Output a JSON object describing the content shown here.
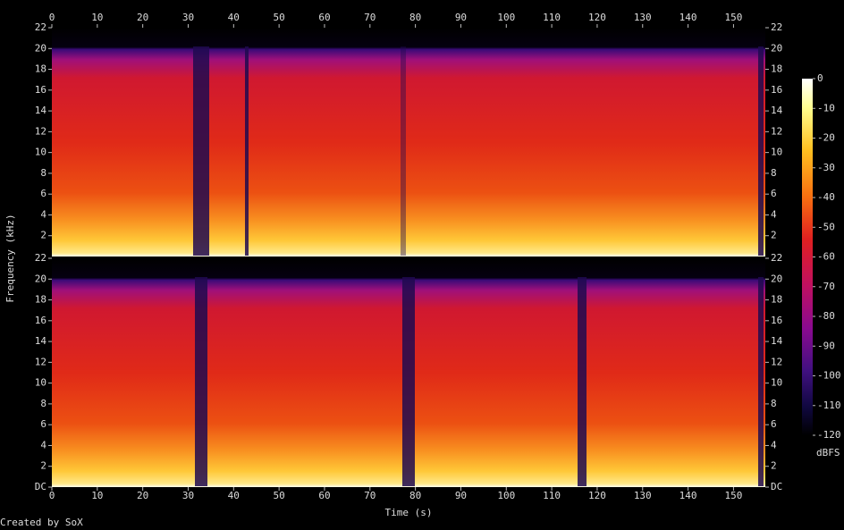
{
  "chart_data": [
    {
      "type": "heatmap",
      "ylabel": "Frequency (kHz)",
      "xlim": [
        0,
        157
      ],
      "xticks": [
        0,
        10,
        20,
        30,
        40,
        50,
        60,
        70,
        80,
        90,
        100,
        110,
        120,
        130,
        140,
        150
      ],
      "ylim": [
        0,
        22
      ],
      "yticks": [
        2,
        4,
        6,
        8,
        10,
        12,
        14,
        16,
        18,
        20,
        22
      ]
    },
    {
      "type": "heatmap",
      "xlabel": "Time (s)",
      "xlim": [
        0,
        157
      ],
      "xticks": [
        0,
        10,
        20,
        30,
        40,
        50,
        60,
        70,
        80,
        90,
        100,
        110,
        120,
        130,
        140,
        150
      ],
      "ylim": [
        0,
        22
      ],
      "yticks": [
        {
          "value": 0,
          "label": "DC"
        },
        2,
        4,
        6,
        8,
        10,
        12,
        14,
        16,
        18,
        20,
        22
      ]
    }
  ],
  "colorbar": {
    "label": "dBFS",
    "lim": [
      -120,
      0
    ],
    "ticks": [
      0,
      -10,
      -20,
      -30,
      -40,
      -50,
      -60,
      -70,
      -80,
      -90,
      -100,
      -110,
      -120
    ]
  },
  "footer": "Created by SoX"
}
